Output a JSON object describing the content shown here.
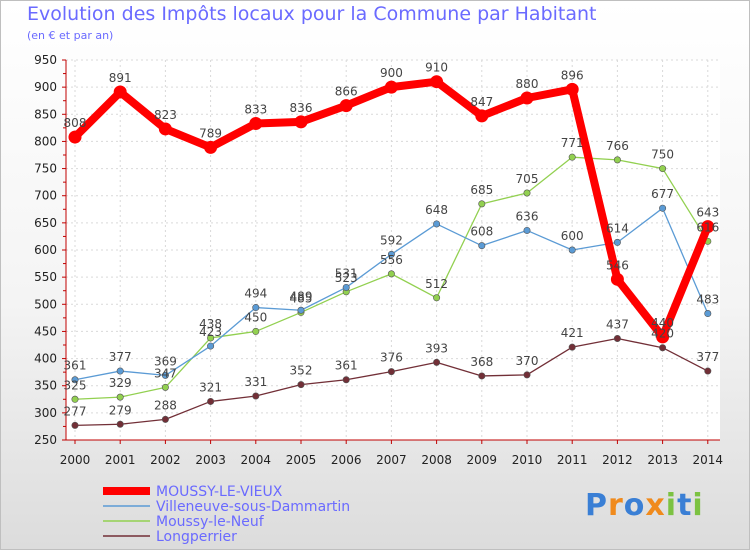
{
  "chart_data": {
    "type": "line",
    "title": "Evolution des Impôts locaux pour la Commune par Habitant",
    "subtitle": "(en € et par an)",
    "x": [
      "2000",
      "2001",
      "2002",
      "2003",
      "2004",
      "2005",
      "2006",
      "2007",
      "2008",
      "2009",
      "2010",
      "2011",
      "2012",
      "2013",
      "2014"
    ],
    "ylim": [
      250,
      950
    ],
    "yticks": [
      250,
      300,
      350,
      400,
      450,
      500,
      550,
      600,
      650,
      700,
      750,
      800,
      850,
      900,
      950
    ],
    "series": [
      {
        "name": "MOUSSY-LE-VIEUX",
        "color": "#ff0000",
        "values": [
          808,
          891,
          823,
          789,
          833,
          836,
          866,
          900,
          910,
          847,
          880,
          896,
          546,
          440,
          643
        ]
      },
      {
        "name": "Villeneuve-sous-Dammartin",
        "color": "#5b9bd5",
        "values": [
          361,
          377,
          369,
          423,
          494,
          489,
          531,
          592,
          648,
          608,
          636,
          600,
          614,
          677,
          483
        ]
      },
      {
        "name": "Moussy-le-Neuf",
        "color": "#92d050",
        "values": [
          325,
          329,
          347,
          438,
          450,
          485,
          523,
          556,
          512,
          685,
          705,
          771,
          766,
          750,
          616
        ]
      },
      {
        "name": "Longperrier",
        "color": "#722f37",
        "values": [
          277,
          279,
          288,
          321,
          331,
          352,
          361,
          376,
          393,
          368,
          370,
          421,
          437,
          420,
          377
        ]
      }
    ],
    "value_labels": [
      [
        "808",
        "891",
        "823",
        "789",
        "833",
        "836",
        "866",
        "900",
        "910",
        "847",
        "880",
        "896",
        "546",
        "440",
        "643"
      ],
      [
        "361",
        "377",
        "369",
        "423",
        "494",
        "489",
        "531",
        "592",
        "648",
        "608",
        "636",
        "600",
        "614",
        "677",
        "483"
      ],
      [
        "325",
        "329",
        "347",
        "438",
        "450",
        "485",
        "523",
        "556",
        "512",
        "685",
        "705",
        "771",
        "766",
        "750",
        "616"
      ],
      [
        "277",
        "279",
        "288",
        "321",
        "331",
        "352",
        "361",
        "376",
        "393",
        "368",
        "370",
        "421",
        "437",
        "420",
        "377"
      ]
    ]
  },
  "logo": {
    "text": "Proxiti",
    "colors": [
      "#3a7fd5",
      "#f08a1c",
      "#3a7fd5",
      "#f08a1c",
      "#7cc242",
      "#3a7fd5",
      "#7cc242"
    ]
  }
}
